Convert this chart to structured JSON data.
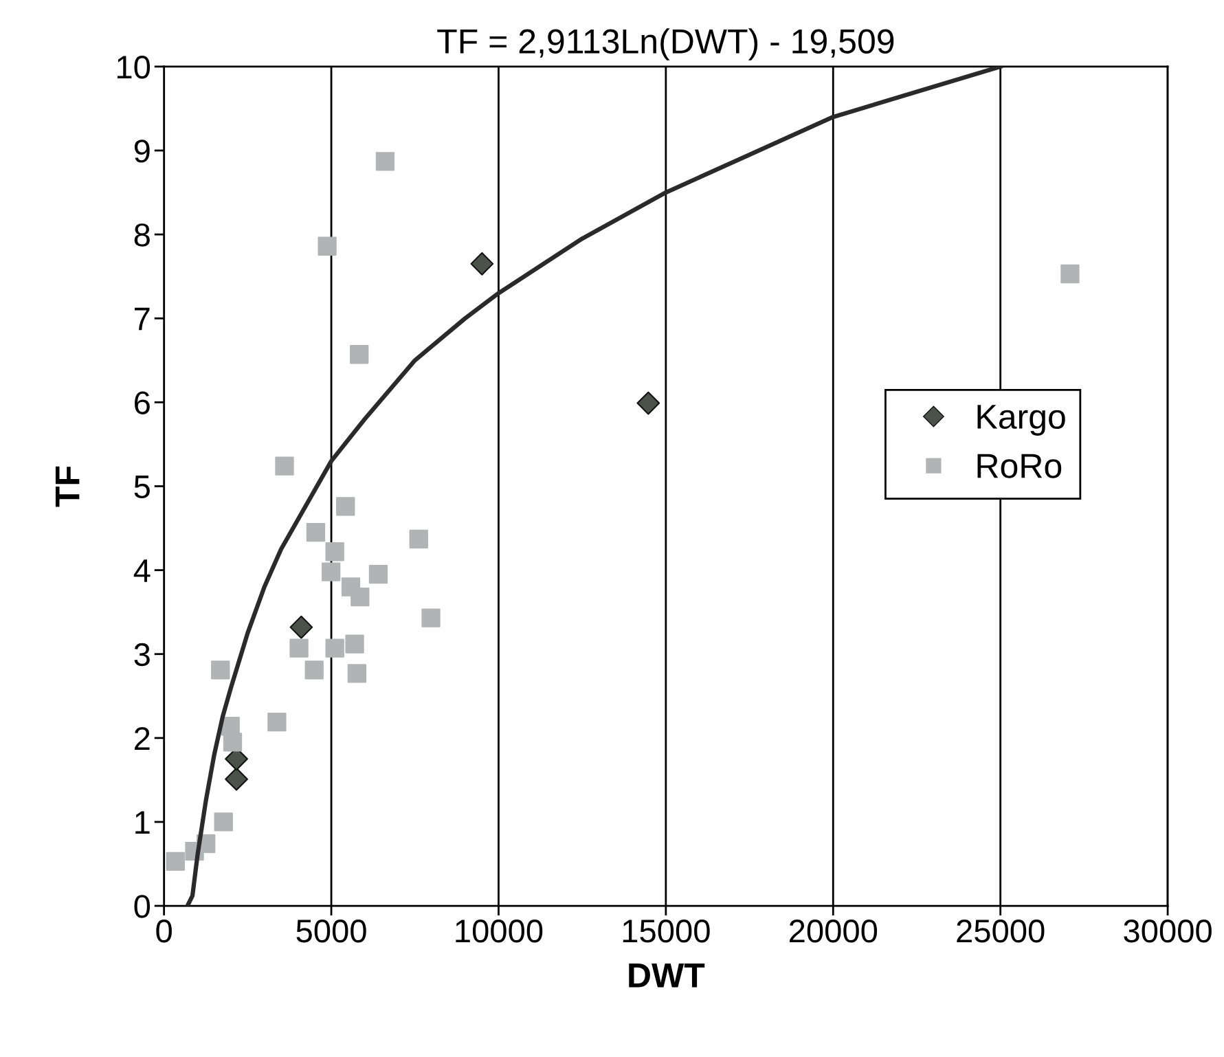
{
  "chart_data": {
    "type": "scatter",
    "title": "TF = 2,9113Ln(DWT) - 19,509",
    "xlabel": "DWT",
    "ylabel": "TF",
    "xlim": [
      0,
      30000
    ],
    "ylim": [
      0,
      10
    ],
    "xticks": [
      0,
      5000,
      10000,
      15000,
      20000,
      25000,
      30000
    ],
    "yticks": [
      0,
      1,
      2,
      3,
      4,
      5,
      6,
      7,
      8,
      9,
      10
    ],
    "grid": "x",
    "legend": "right",
    "series": [
      {
        "name": "Kargo",
        "color": "#4a524a",
        "marker": "diamond",
        "x": [
          9505,
          14475,
          4103,
          2165,
          2165
        ],
        "values": [
          7.65,
          5.99,
          3.32,
          1.51,
          1.75
        ]
      },
      {
        "name": "RoRo",
        "color": "#b0b4b4",
        "marker": "square",
        "x": [
          6610,
          4878,
          5835,
          3602,
          5425,
          4536,
          7613,
          5106,
          4992,
          6405,
          5585,
          5858,
          7978,
          4035,
          5106,
          5699,
          4490,
          5767,
          3374,
          1687,
          1983,
          2051,
          1778,
          1254,
          342,
          912,
          27080
        ],
        "values": [
          8.87,
          7.86,
          6.57,
          5.24,
          4.76,
          4.45,
          4.37,
          4.22,
          3.98,
          3.95,
          3.8,
          3.68,
          3.43,
          3.07,
          3.07,
          3.12,
          2.81,
          2.77,
          2.19,
          2.81,
          2.14,
          1.95,
          1.0,
          0.74,
          0.53,
          0.65,
          7.53
        ]
      },
      {
        "type": "line",
        "color": "#2a2a2a",
        "marker": "none",
        "line_style": "solid",
        "x": [
          700,
          850,
          1000,
          1250,
          1500,
          1750,
          2000,
          2500,
          3000,
          3500,
          4000,
          5000,
          6000,
          7500,
          9000,
          10000,
          12500,
          15000,
          17500,
          20000,
          22500,
          25000
        ],
        "values": [
          0.0,
          0.12,
          0.6,
          1.25,
          1.8,
          2.25,
          2.6,
          3.25,
          3.8,
          4.25,
          4.6,
          5.3,
          5.8,
          6.5,
          7.0,
          7.3,
          7.95,
          8.5,
          8.95,
          9.4,
          9.7,
          10.0
        ]
      }
    ]
  }
}
